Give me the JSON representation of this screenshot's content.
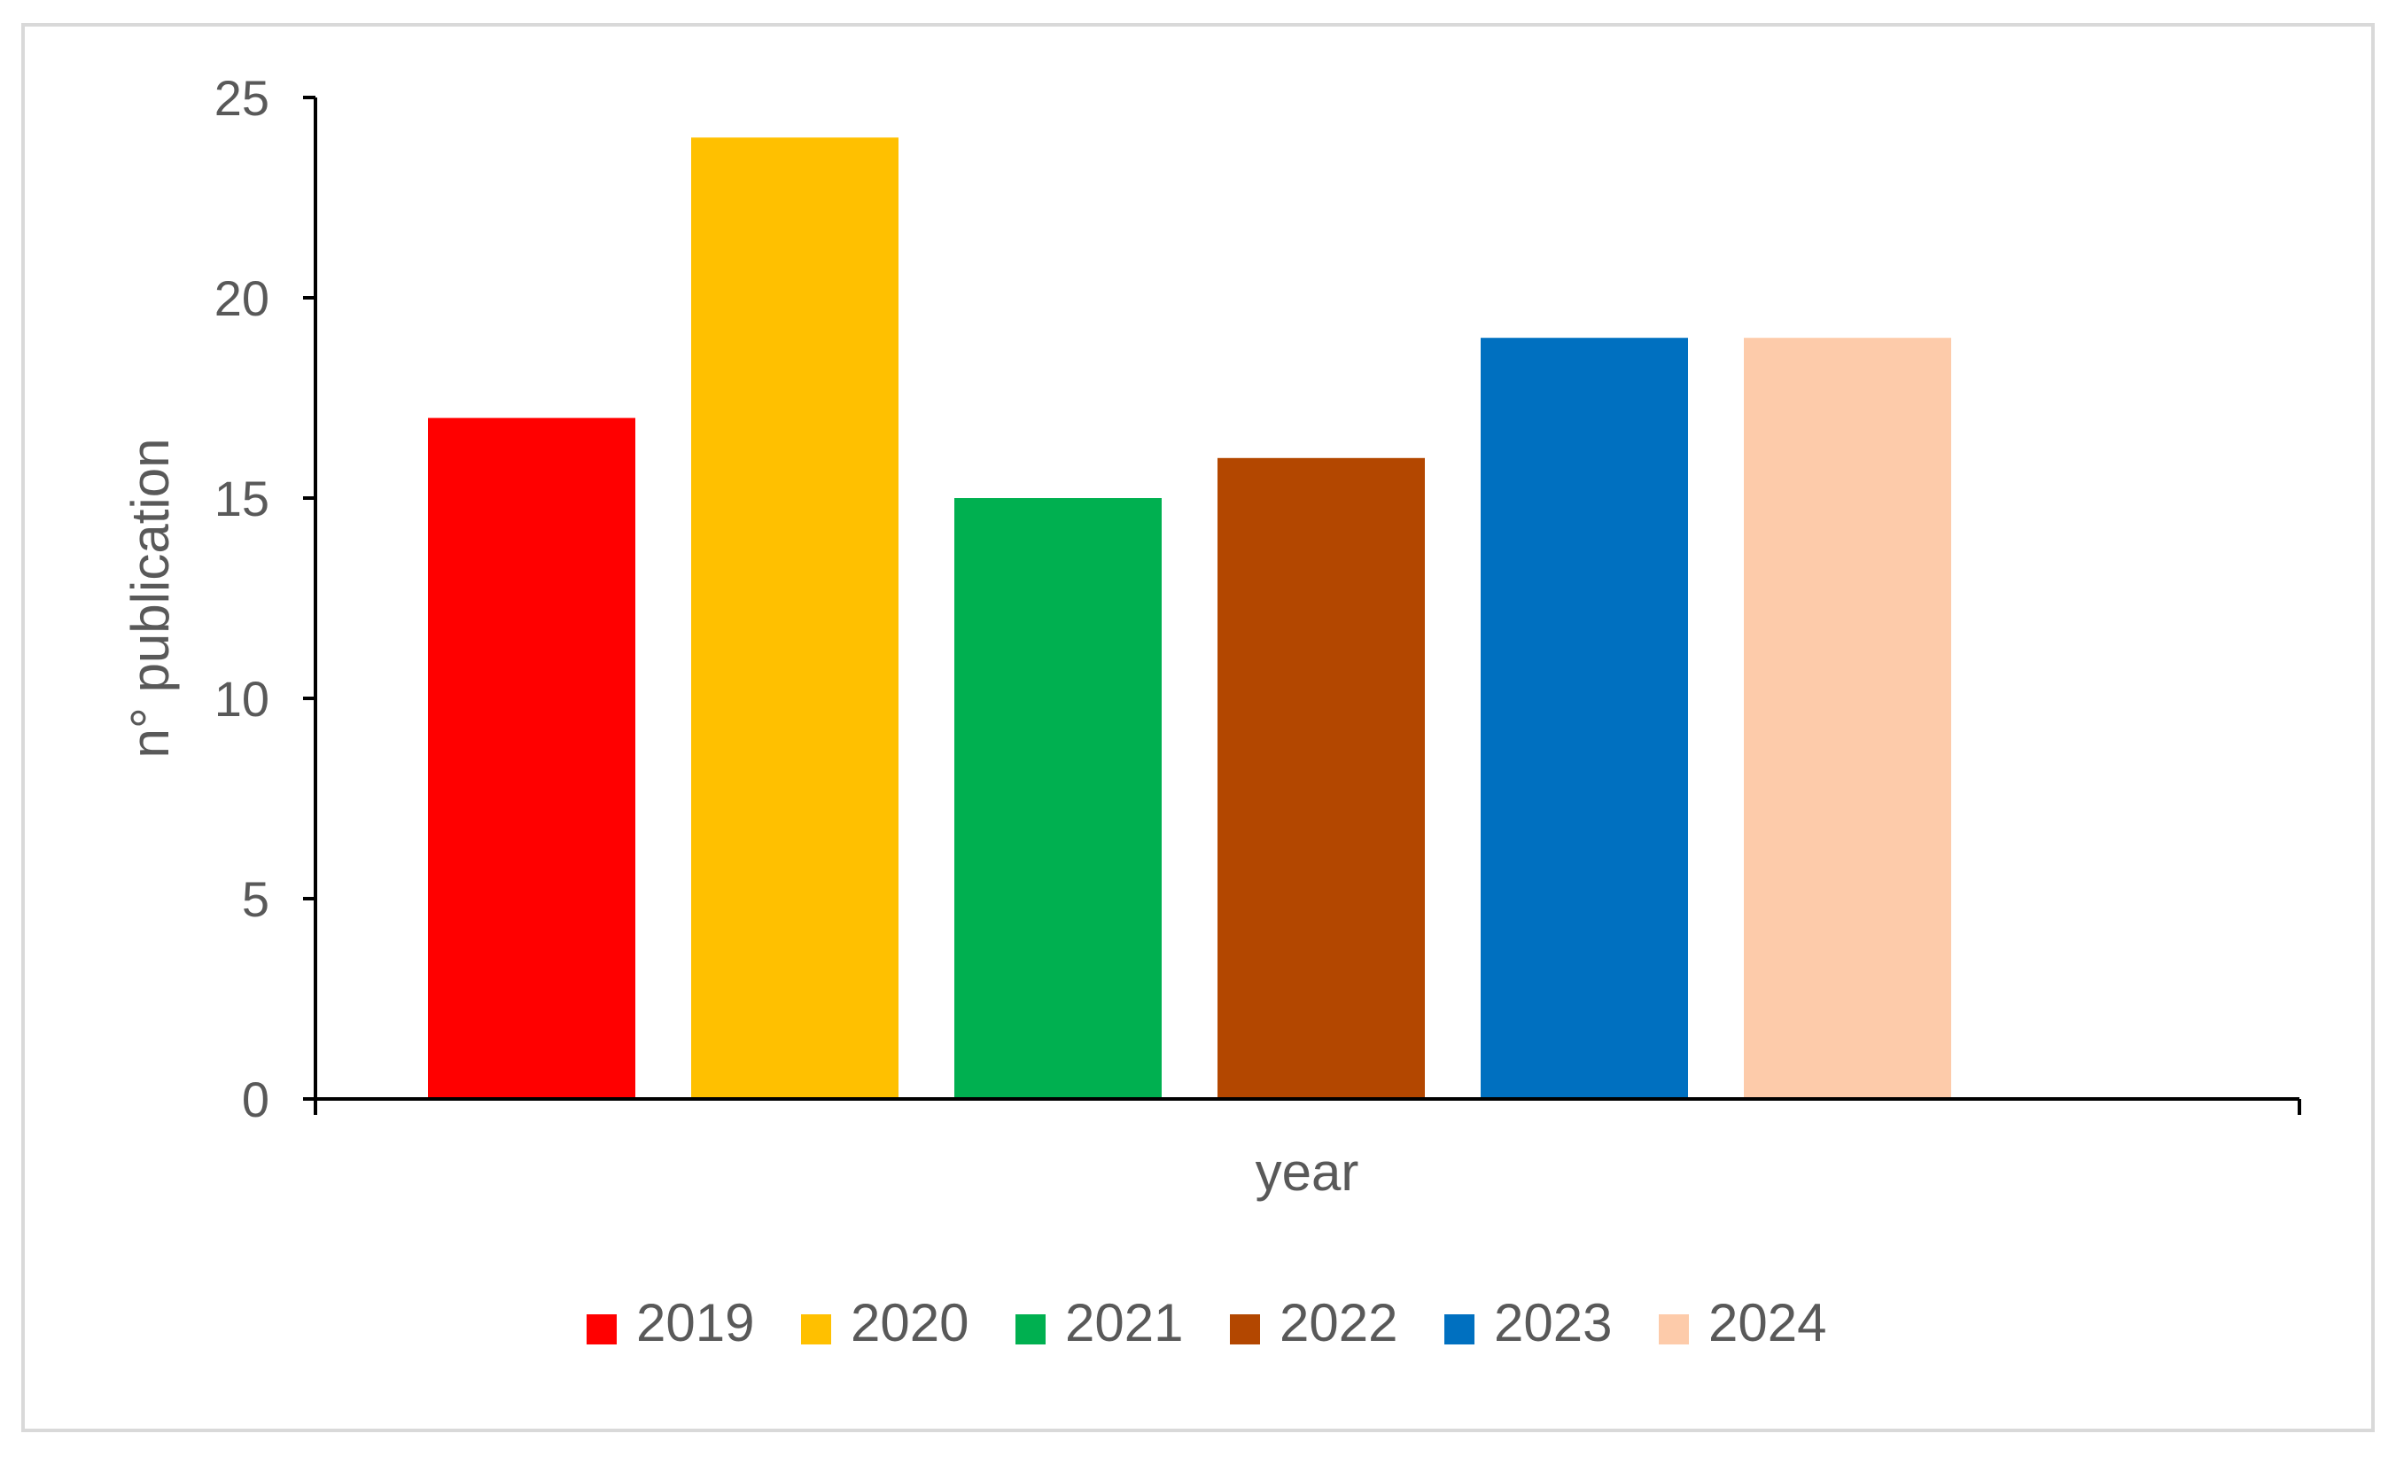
{
  "chart_data": {
    "type": "bar",
    "title": "",
    "xlabel": "year",
    "ylabel": "n° publication",
    "ylim": [
      0,
      25
    ],
    "yticks": [
      0,
      5,
      10,
      15,
      20,
      25
    ],
    "categories": [
      "2019",
      "2020",
      "2021",
      "2022",
      "2023",
      "2024"
    ],
    "series": [
      {
        "name": "2019",
        "values": [
          17,
          null,
          null,
          null,
          null,
          null
        ],
        "color": "#ff0000"
      },
      {
        "name": "2020",
        "values": [
          null,
          24,
          null,
          null,
          null,
          null
        ],
        "color": "#ffc000"
      },
      {
        "name": "2021",
        "values": [
          null,
          null,
          15,
          null,
          null,
          null
        ],
        "color": "#00b050"
      },
      {
        "name": "2022",
        "values": [
          null,
          null,
          null,
          16,
          null,
          null
        ],
        "color": "#b34700"
      },
      {
        "name": "2023",
        "values": [
          null,
          null,
          null,
          null,
          19,
          null
        ],
        "color": "#0070c0"
      },
      {
        "name": "2024",
        "values": [
          null,
          null,
          null,
          null,
          null,
          19
        ],
        "color": "#fdcbaa"
      }
    ],
    "values": [
      17,
      24,
      15,
      16,
      19,
      19
    ],
    "colors": [
      "#ff0000",
      "#ffc000",
      "#00b050",
      "#b34700",
      "#0070c0",
      "#fdcbaa"
    ],
    "legend": {
      "position": "bottom",
      "entries": [
        "2019",
        "2020",
        "2021",
        "2022",
        "2023",
        "2024"
      ]
    },
    "grid": false,
    "axis_color": "#000000",
    "text_color": "#595959"
  }
}
